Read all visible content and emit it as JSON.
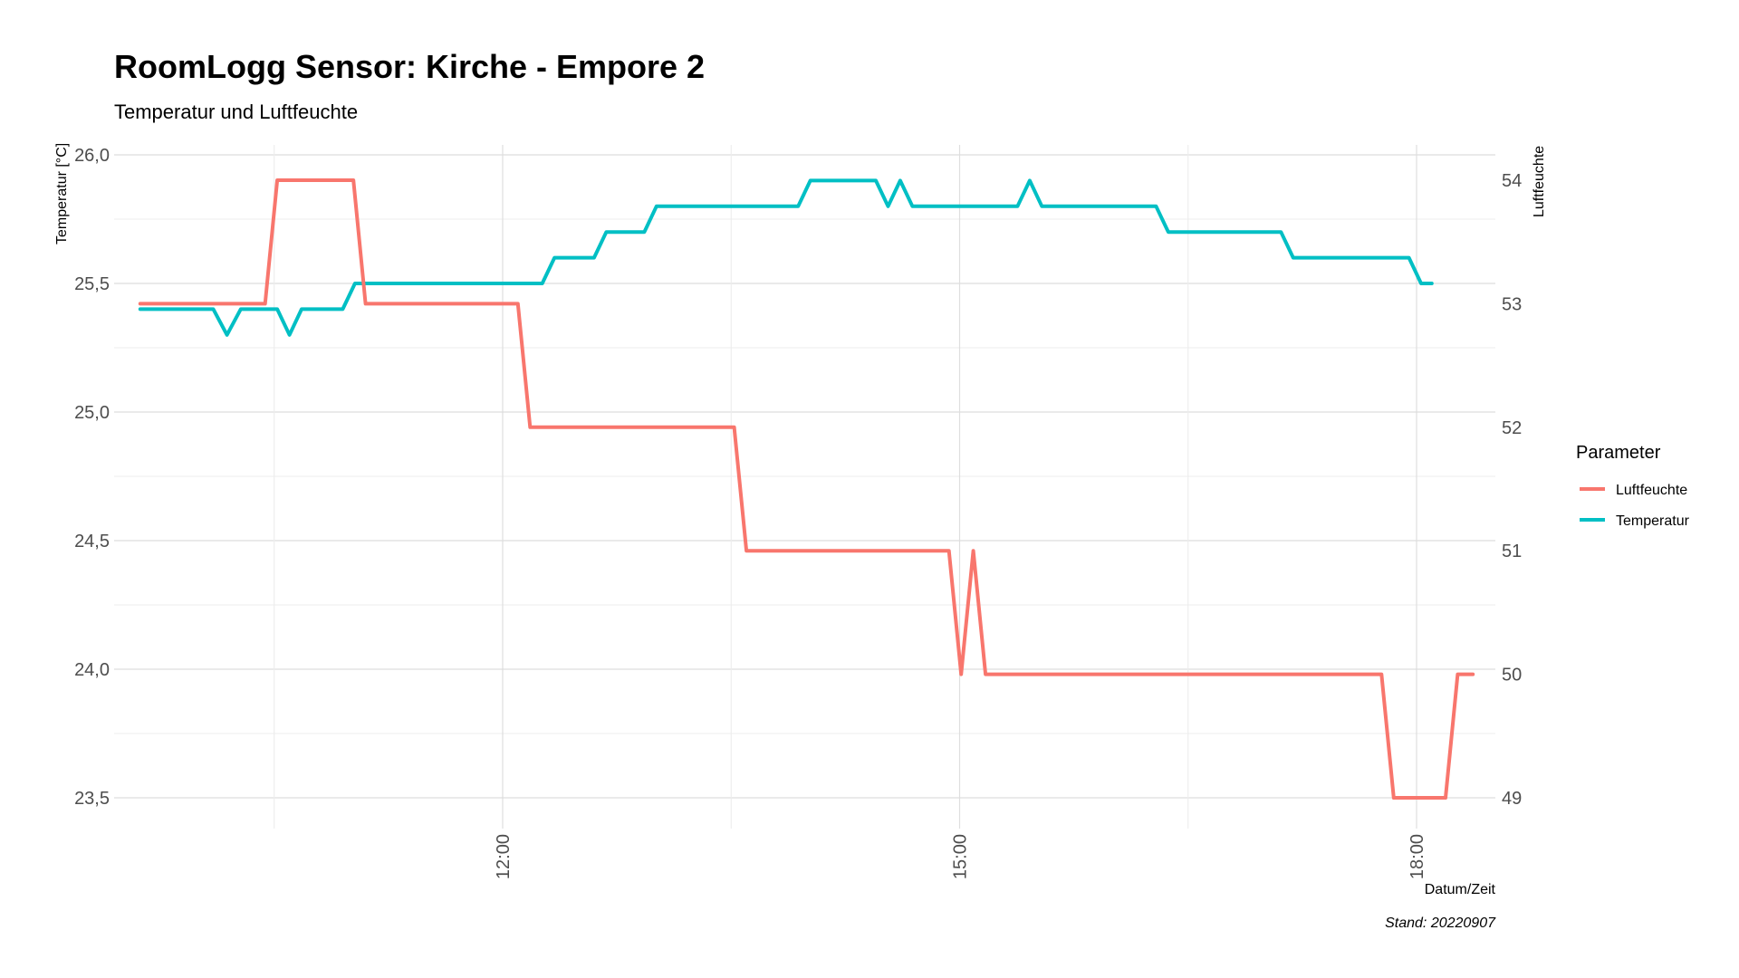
{
  "chart_data": {
    "type": "line",
    "title": "RoomLogg Sensor: Kirche - Empore 2",
    "subtitle": "Temperatur und Luftfeuchte",
    "xlabel": "Datum/Zeit",
    "ylabel_left": "Temperatur [°C]",
    "ylabel_right": "Luftfeuchte",
    "caption": "Stand: 20220907",
    "x_unit": "hours",
    "xlim": [
      9.2,
      18.3
    ],
    "x_ticks": [
      {
        "value": 12,
        "label": "12:00"
      },
      {
        "value": 15,
        "label": "15:00"
      },
      {
        "value": 18,
        "label": "18:00"
      }
    ],
    "y_left": {
      "lim": [
        23.38,
        26.0
      ],
      "ticks": [
        {
          "value": 26.0,
          "label": "26,0"
        },
        {
          "value": 25.5,
          "label": "25,5"
        },
        {
          "value": 25.0,
          "label": "25,0"
        },
        {
          "value": 24.5,
          "label": "24,5"
        },
        {
          "value": 24.0,
          "label": "24,0"
        },
        {
          "value": 23.5,
          "label": "23,5"
        }
      ]
    },
    "y_right": {
      "lim": [
        48.55,
        54.2
      ],
      "ticks": [
        {
          "value": 54,
          "label": "54"
        },
        {
          "value": 53,
          "label": "53"
        },
        {
          "value": 52,
          "label": "52"
        },
        {
          "value": 51,
          "label": "51"
        },
        {
          "value": 50,
          "label": "50"
        },
        {
          "value": 49,
          "label": "49"
        }
      ]
    },
    "grid": true,
    "legend": {
      "title": "Parameter",
      "placement": "right",
      "entries": [
        {
          "name": "Luftfeuchte",
          "color": "#F8766D"
        },
        {
          "name": "Temperatur",
          "color": "#00BFC4"
        }
      ]
    },
    "series": [
      {
        "name": "Temperatur",
        "axis": "left",
        "color": "#00BFC4",
        "x": [
          9.62,
          10.1,
          10.19,
          10.28,
          10.52,
          10.6,
          10.68,
          10.95,
          11.03,
          11.13,
          12.26,
          12.34,
          12.6,
          12.68,
          12.93,
          13.01,
          13.94,
          14.02,
          14.45,
          14.53,
          14.61,
          14.69,
          15.38,
          15.46,
          15.54,
          16.29,
          16.37,
          17.11,
          17.19,
          17.95,
          18.03,
          18.1
        ],
        "y": [
          25.4,
          25.4,
          25.3,
          25.4,
          25.4,
          25.3,
          25.4,
          25.4,
          25.5,
          25.5,
          25.5,
          25.6,
          25.6,
          25.7,
          25.7,
          25.8,
          25.8,
          25.9,
          25.9,
          25.8,
          25.9,
          25.8,
          25.8,
          25.9,
          25.8,
          25.8,
          25.7,
          25.7,
          25.6,
          25.6,
          25.5,
          25.5
        ]
      },
      {
        "name": "Luftfeuchte",
        "axis": "right",
        "color": "#F8766D",
        "x": [
          9.62,
          10.44,
          10.52,
          11.02,
          11.1,
          12.1,
          12.18,
          13.52,
          13.6,
          14.93,
          15.01,
          15.09,
          15.17,
          17.77,
          17.85,
          18.19,
          18.27,
          18.37
        ],
        "y": [
          53,
          53,
          54,
          54,
          53,
          53,
          52,
          52,
          51,
          51,
          50,
          51,
          50,
          50,
          49,
          49,
          50,
          50
        ]
      }
    ]
  }
}
